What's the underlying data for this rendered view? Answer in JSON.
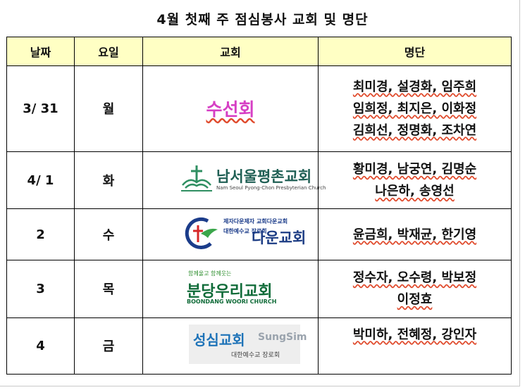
{
  "title": "4월 첫째 주 점심봉사 교회 및 명단",
  "headers": {
    "date": "날짜",
    "day": "요일",
    "church": "교회",
    "roster": "명단"
  },
  "rows": [
    {
      "date": "3/ 31",
      "day": "월",
      "church": {
        "logo": "sunseon",
        "name": "수선회"
      },
      "name_lines": [
        "최미경, 설경화, 임주희",
        "임희정, 최지은, 이화정",
        "김희선, 정명화, 조차연"
      ]
    },
    {
      "date": "4/ 1",
      "day": "화",
      "church": {
        "logo": "namseoul",
        "name": "남서울평촌교회",
        "english": "Nam Seoul Pyong-Chon Presbyterian Church"
      },
      "name_lines": [
        "황미경, 남궁연, 김명순",
        "나은하, 송영선"
      ]
    },
    {
      "date": "2",
      "day": "수",
      "church": {
        "logo": "daun",
        "tagline": "제자다운제자 교회다운교회",
        "denomination": "대한예수교 장로회",
        "name": "다운교회"
      },
      "name_lines": [
        "윤금희, 박재균, 한기영"
      ]
    },
    {
      "date": "3",
      "day": "목",
      "church": {
        "logo": "bundang",
        "slogan": "함께울고 함께웃는",
        "name": "분당우리교회",
        "english": "BOONDANG WOORI CHURCH"
      },
      "name_lines": [
        "정수자, 오수령, 박보정",
        "이정효"
      ]
    },
    {
      "date": "4",
      "day": "금",
      "church": {
        "logo": "sungsim",
        "name": "성심교회",
        "english": "SungSim",
        "denomination": "대한예수교 장로회"
      },
      "name_lines": [
        "박미하, 전혜정, 강인자"
      ]
    }
  ],
  "colors": {
    "header_bg": "#ffffc4",
    "sunseon": "#d63fc4",
    "namseoul": "#1f5f54",
    "daun": "#1c3c84",
    "bundang": "#0f6b38",
    "sungsim": "#1e73b8",
    "spellcheck_underline": "#e04a2c"
  }
}
